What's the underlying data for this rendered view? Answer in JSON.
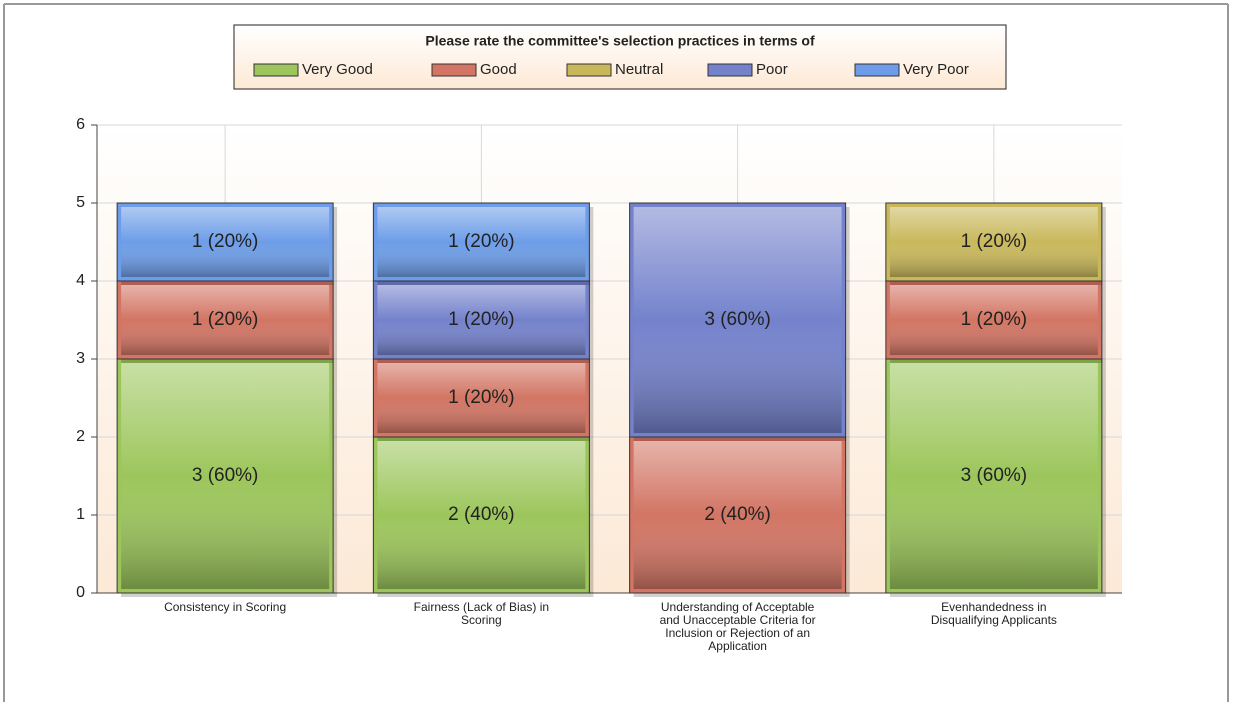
{
  "chart_data": {
    "type": "stacked_bar",
    "title": "Please rate the committee's selection practices in terms of",
    "categories": [
      "Consistency in Scoring",
      "Fairness (Lack of Bias) in Scoring",
      "Understanding of Acceptable and Unacceptable Criteria for Inclusion or Rejection of an Application",
      "Evenhandedness in Disqualifying Applicants"
    ],
    "series": [
      {
        "name": "Very Good",
        "color": "#9cc65c",
        "values": [
          3,
          2,
          0,
          3
        ],
        "value_labels": [
          "3 (60%)",
          "2 (40%)",
          null,
          "3 (60%)"
        ]
      },
      {
        "name": "Good",
        "color": "#d27564",
        "values": [
          1,
          1,
          2,
          1
        ],
        "value_labels": [
          "1 (20%)",
          "1 (20%)",
          "2 (40%)",
          "1 (20%)"
        ]
      },
      {
        "name": "Neutral",
        "color": "#c9b85b",
        "values": [
          0,
          0,
          0,
          1
        ],
        "value_labels": [
          null,
          null,
          null,
          "1 (20%)"
        ]
      },
      {
        "name": "Poor",
        "color": "#7482cc",
        "values": [
          0,
          1,
          3,
          0
        ],
        "value_labels": [
          null,
          "1 (20%)",
          "3 (60%)",
          null
        ]
      },
      {
        "name": "Very Poor",
        "color": "#6d9de8",
        "values": [
          1,
          1,
          0,
          0
        ],
        "value_labels": [
          "1 (20%)",
          "1 (20%)",
          null,
          null
        ]
      }
    ],
    "ylim": [
      0,
      6
    ],
    "yticks": [
      0,
      1,
      2,
      3,
      4,
      5,
      6
    ],
    "grid": true
  }
}
